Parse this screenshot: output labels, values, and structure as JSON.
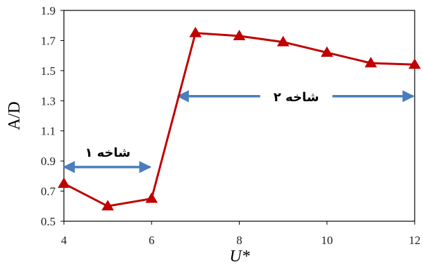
{
  "chart_data": {
    "type": "line",
    "xlabel": "U*",
    "ylabel": "A/D",
    "xlim": [
      4,
      12
    ],
    "ylim": [
      0.5,
      1.9
    ],
    "x_ticks": [
      "4",
      "6",
      "8",
      "10",
      "12"
    ],
    "y_ticks": [
      "0.5",
      "0.7",
      "0.9",
      "1.1",
      "1.3",
      "1.5",
      "1.7",
      "1.9"
    ],
    "grid": "none",
    "series": [
      {
        "x": [
          4,
          5,
          6,
          7,
          8,
          9,
          10,
          11,
          12
        ],
        "y": [
          0.75,
          0.6,
          0.65,
          1.75,
          1.73,
          1.69,
          1.62,
          1.55,
          1.54
        ],
        "color": "#c00000",
        "marker": "triangle"
      }
    ],
    "annotations": [
      {
        "label": "شاخه ۱",
        "from": 4,
        "to": 6,
        "y": 0.86,
        "color": "#4a7ebb"
      },
      {
        "label": "شاخه ۲",
        "from": 6.6,
        "to": 12,
        "y": 1.33,
        "color": "#4a7ebb"
      }
    ]
  }
}
